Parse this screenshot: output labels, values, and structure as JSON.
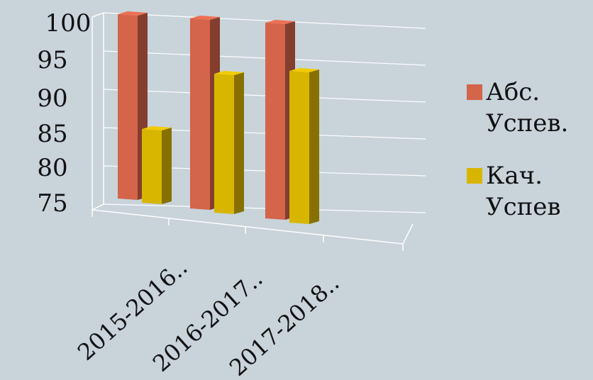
{
  "chart_data": {
    "type": "bar",
    "categories": [
      "2015-2016..",
      "2016-2017..",
      "2017-2018.."
    ],
    "series": [
      {
        "name": "Абс.\nУспев.",
        "values": [
          100,
          100,
          100
        ],
        "color": "#d4644a"
      },
      {
        "name": "Кач.\nУспев",
        "values": [
          85,
          92,
          92
        ],
        "color": "#d8b600"
      }
    ],
    "yticks": [
      75,
      80,
      85,
      90,
      95,
      100
    ],
    "ylim": [
      75,
      100
    ],
    "title": "",
    "xlabel": "",
    "ylabel": "",
    "grid": true,
    "legend": "right",
    "style": "3d"
  }
}
